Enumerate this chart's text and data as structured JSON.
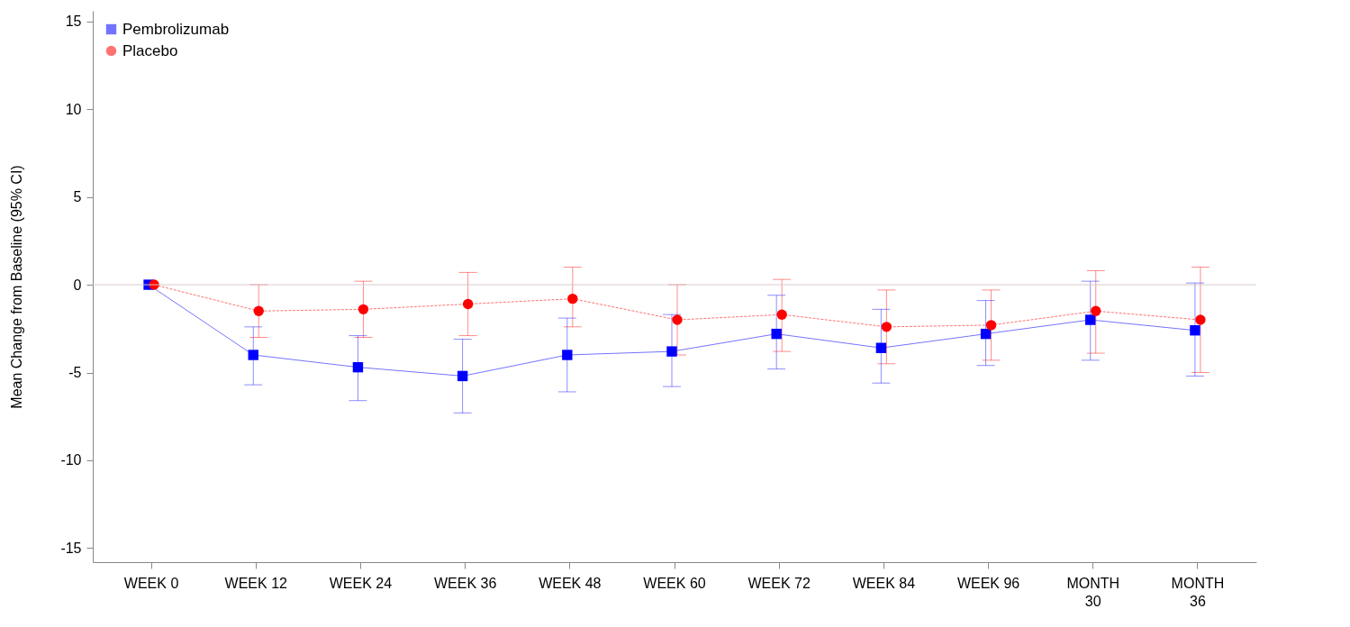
{
  "chart_data": {
    "type": "line",
    "ylabel": "Mean Change from Baseline (95% CI)",
    "categories": [
      "WEEK 0",
      "WEEK 12",
      "WEEK 24",
      "WEEK 36",
      "WEEK 48",
      "WEEK 60",
      "WEEK 72",
      "WEEK 84",
      "WEEK 96",
      "MONTH 30",
      "MONTH 36"
    ],
    "series": [
      {
        "name": "Pembrolizumab",
        "color": "#0000ff",
        "marker": "square",
        "line_style": "solid",
        "values": [
          0,
          -4.0,
          -4.7,
          -5.2,
          -4.0,
          -3.8,
          -2.8,
          -3.6,
          -2.8,
          -2.0,
          -2.6
        ],
        "errors": [
          null,
          [
            -5.7,
            -2.4
          ],
          [
            -6.6,
            -2.9
          ],
          [
            -7.3,
            -3.1
          ],
          [
            -6.1,
            -1.9
          ],
          [
            -5.8,
            -1.7
          ],
          [
            -4.8,
            -0.6
          ],
          [
            -5.6,
            -1.4
          ],
          [
            -4.6,
            -0.9
          ],
          [
            -4.3,
            0.2
          ],
          [
            -5.2,
            0.1
          ]
        ]
      },
      {
        "name": "Placebo",
        "color": "#ff0000",
        "marker": "circle",
        "line_style": "dashed",
        "values": [
          0,
          -1.5,
          -1.4,
          -1.1,
          -0.8,
          -2.0,
          -1.7,
          -2.4,
          -2.3,
          -1.5,
          -2.0
        ],
        "errors": [
          null,
          [
            -3.0,
            0.0
          ],
          [
            -3.0,
            0.2
          ],
          [
            -2.9,
            0.7
          ],
          [
            -2.4,
            1.0
          ],
          [
            -4.0,
            0.0
          ],
          [
            -3.8,
            0.3
          ],
          [
            -4.5,
            -0.3
          ],
          [
            -4.3,
            -0.3
          ],
          [
            -3.9,
            0.8
          ],
          [
            -5.0,
            1.0
          ]
        ]
      }
    ],
    "ylim": [
      -15.8,
      15.6
    ],
    "yticks": [
      -15,
      -10,
      -5,
      0,
      5,
      10,
      15
    ],
    "ref_lines": [
      {
        "axis": "y",
        "value": 0,
        "color": "#d8c8cc"
      }
    ],
    "grid": false,
    "legend": "top left"
  }
}
